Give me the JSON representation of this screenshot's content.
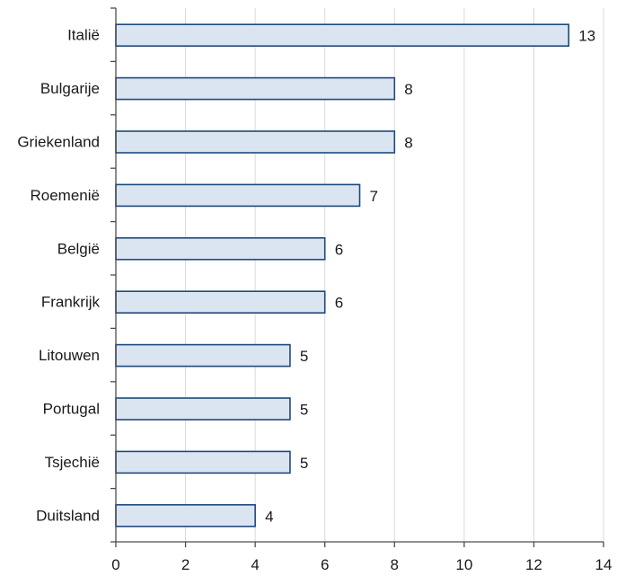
{
  "chart_data": {
    "type": "bar",
    "orientation": "horizontal",
    "categories": [
      "Italië",
      "Bulgarije",
      "Griekenland",
      "Roemenië",
      "België",
      "Frankrijk",
      "Litouwen",
      "Portugal",
      "Tsjechië",
      "Duitsland"
    ],
    "values": [
      13,
      8,
      8,
      7,
      6,
      6,
      5,
      5,
      5,
      4
    ],
    "data_labels": [
      "13",
      "8",
      "8",
      "7",
      "6",
      "6",
      "5",
      "5",
      "5",
      "4"
    ],
    "xlim": [
      0,
      14
    ],
    "x_ticks": [
      0,
      2,
      4,
      6,
      8,
      10,
      12,
      14
    ],
    "x_tick_labels": [
      "0",
      "2",
      "4",
      "6",
      "8",
      "10",
      "12",
      "14"
    ],
    "grid": "vertical",
    "legend": "none",
    "colors": {
      "bar_fill": "#dbe5f1",
      "bar_edge": "#1f497d",
      "grid": "#d9d9d9",
      "axis": "#4d4d4d"
    }
  }
}
